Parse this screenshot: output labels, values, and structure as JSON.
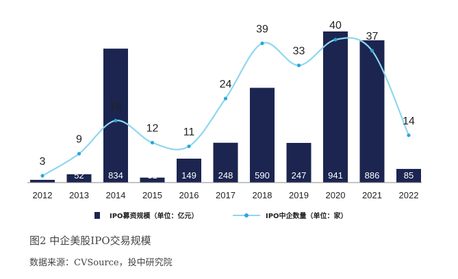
{
  "colors": {
    "bar": "#1b2550",
    "line": "#8ed6ef",
    "line_point": "#29a7d8",
    "axis": "#888888",
    "label": "#222222",
    "bar_label": "#ffffff"
  },
  "chart_data": {
    "type": "bar",
    "categories": [
      "2012",
      "2013",
      "2014",
      "2015",
      "2016",
      "2017",
      "2018",
      "2019",
      "2020",
      "2021",
      "2022"
    ],
    "series": [
      {
        "name": "IPO募资规模（单位：亿元）",
        "type": "bar",
        "values": [
          15,
          52,
          834,
          31,
          149,
          248,
          590,
          247,
          941,
          886,
          85
        ]
      },
      {
        "name": "IPO中企数量（单位：家）",
        "type": "line",
        "values": [
          3,
          9,
          18,
          12,
          11,
          24,
          39,
          33,
          40,
          37,
          14
        ]
      }
    ],
    "legend_position": "bottom",
    "grid": false
  },
  "caption": "图2 中企美股IPO交易规模",
  "source": "数据来源：CVSource，投中研究院"
}
